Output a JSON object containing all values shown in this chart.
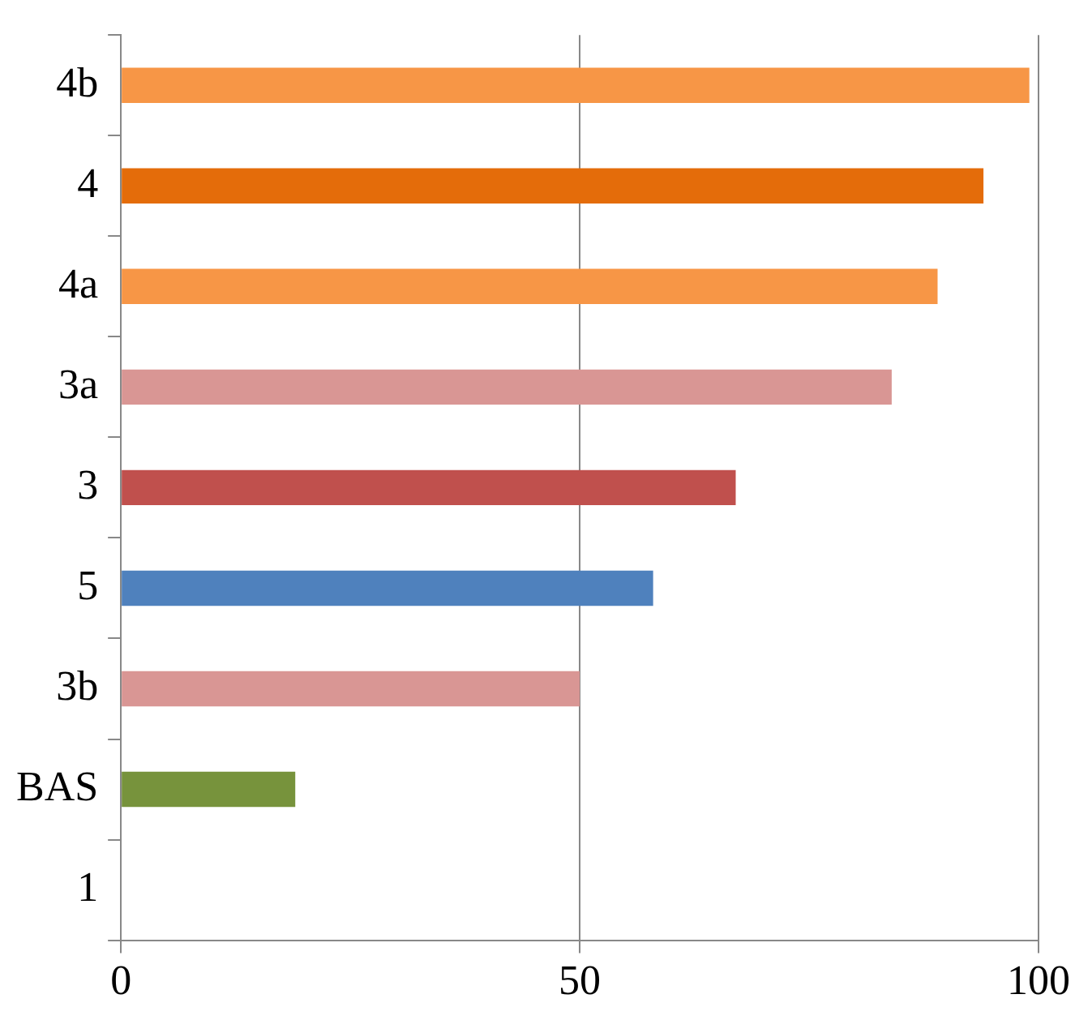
{
  "chart_data": {
    "type": "bar",
    "orientation": "horizontal",
    "categories": [
      "4b",
      "4",
      "4a",
      "3a",
      "3",
      "5",
      "3b",
      "BAS",
      "1"
    ],
    "values": [
      99,
      94,
      89,
      84,
      67,
      58,
      50,
      19,
      0
    ],
    "colors": [
      "#f79646",
      "#e46c0a",
      "#f79646",
      "#d99694",
      "#c0504d",
      "#4f81bd",
      "#d99694",
      "#77933c",
      "#77933c"
    ],
    "xlim": [
      0,
      100
    ],
    "xticks": [
      0,
      50,
      100
    ],
    "grid": "x",
    "legend": false
  }
}
